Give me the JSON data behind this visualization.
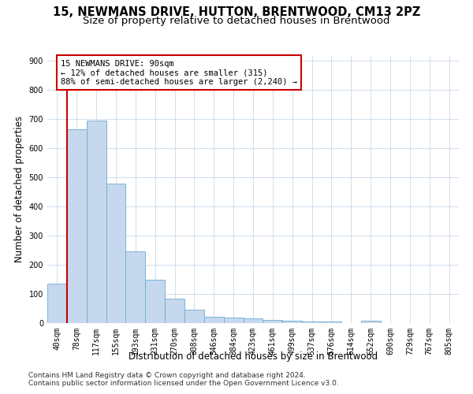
{
  "title": "15, NEWMANS DRIVE, HUTTON, BRENTWOOD, CM13 2PZ",
  "subtitle": "Size of property relative to detached houses in Brentwood",
  "xlabel": "Distribution of detached houses by size in Brentwood",
  "ylabel": "Number of detached properties",
  "bar_labels": [
    "40sqm",
    "78sqm",
    "117sqm",
    "155sqm",
    "193sqm",
    "231sqm",
    "270sqm",
    "308sqm",
    "346sqm",
    "384sqm",
    "423sqm",
    "461sqm",
    "499sqm",
    "537sqm",
    "576sqm",
    "614sqm",
    "652sqm",
    "690sqm",
    "729sqm",
    "767sqm",
    "805sqm"
  ],
  "bar_values": [
    135,
    665,
    695,
    480,
    247,
    148,
    83,
    47,
    22,
    18,
    17,
    10,
    8,
    6,
    5,
    0,
    8,
    0,
    0,
    0,
    0
  ],
  "bar_color": "#c5d8ed",
  "bar_edge_color": "#6faad4",
  "property_line_x": 0.5,
  "property_line_color": "#cc0000",
  "annotation_text": "15 NEWMANS DRIVE: 90sqm\n← 12% of detached houses are smaller (315)\n88% of semi-detached houses are larger (2,240) →",
  "annotation_box_color": "#cc0000",
  "ylim": [
    0,
    920
  ],
  "yticks": [
    0,
    100,
    200,
    300,
    400,
    500,
    600,
    700,
    800,
    900
  ],
  "footer_line1": "Contains HM Land Registry data © Crown copyright and database right 2024.",
  "footer_line2": "Contains public sector information licensed under the Open Government Licence v3.0.",
  "bg_color": "#ffffff",
  "grid_color": "#c8d8e8",
  "title_fontsize": 10.5,
  "subtitle_fontsize": 9.5,
  "axis_label_fontsize": 8.5,
  "tick_fontsize": 7,
  "annotation_fontsize": 7.5,
  "footer_fontsize": 6.5
}
